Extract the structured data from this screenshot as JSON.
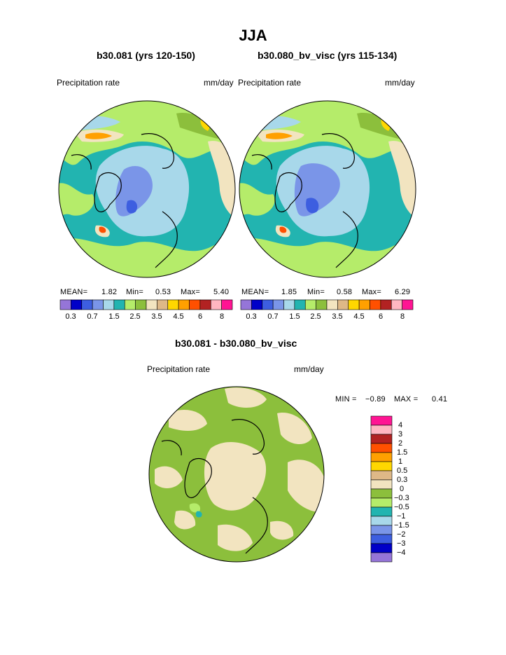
{
  "page": {
    "title": "JJA",
    "colors": {
      "full": [
        "#9575d8",
        "#0000c8",
        "#3d5ee0",
        "#7a95e8",
        "#a8d8ea",
        "#22b4b0",
        "#b5ec6a",
        "#8cbf3c",
        "#f2e4c0",
        "#deb887",
        "#ffd700",
        "#ffa000",
        "#ff5000",
        "#b22222",
        "#ffb6c1",
        "#ff1493"
      ],
      "diff": [
        "#ff1493",
        "#ffb6c1",
        "#b22222",
        "#ff5000",
        "#ffa000",
        "#ffd700",
        "#deb887",
        "#f2e4c0",
        "#8cbf3c",
        "#b5ec6a",
        "#22b4b0",
        "#a8d8ea",
        "#7a95e8",
        "#3d5ee0",
        "#0000c8",
        "#9575d8"
      ]
    }
  },
  "chart_data": [
    {
      "type": "heatmap",
      "projection": "polar-stereographic-north",
      "title": "b30.081 (yrs 120-150)",
      "variable": "Precipitation rate",
      "units": "mm/day",
      "stats": {
        "mean_label": "MEAN=",
        "mean": "1.82",
        "min_label": "Min=",
        "min": "0.53",
        "max_label": "Max=",
        "max": "5.40"
      },
      "colorbar": {
        "levels": [
          "0.3",
          "0.7",
          "1.5",
          "2.5",
          "3.5",
          "4.5",
          "6",
          "8"
        ]
      }
    },
    {
      "type": "heatmap",
      "projection": "polar-stereographic-north",
      "title": "b30.080_bv_visc (yrs 115-134)",
      "variable": "Precipitation rate",
      "units": "mm/day",
      "stats": {
        "mean_label": "MEAN=",
        "mean": "1.85",
        "min_label": "Min=",
        "min": "0.58",
        "max_label": "Max=",
        "max": "6.29"
      },
      "colorbar": {
        "levels": [
          "0.3",
          "0.7",
          "1.5",
          "2.5",
          "3.5",
          "4.5",
          "6",
          "8"
        ]
      }
    },
    {
      "type": "heatmap",
      "projection": "polar-stereographic-north",
      "title": "b30.081 - b30.080_bv_visc",
      "variable": "Precipitation rate",
      "units": "mm/day",
      "stats": {
        "min_label": "MIN =",
        "min": "−0.89",
        "max_label": "MAX =",
        "max": "0.41"
      },
      "colorbar": {
        "levels": [
          "4",
          "3",
          "2",
          "1.5",
          "1",
          "0.5",
          "0.3",
          "0",
          "−0.3",
          "−0.5",
          "−1",
          "−1.5",
          "−2",
          "−3",
          "−4"
        ]
      }
    }
  ]
}
